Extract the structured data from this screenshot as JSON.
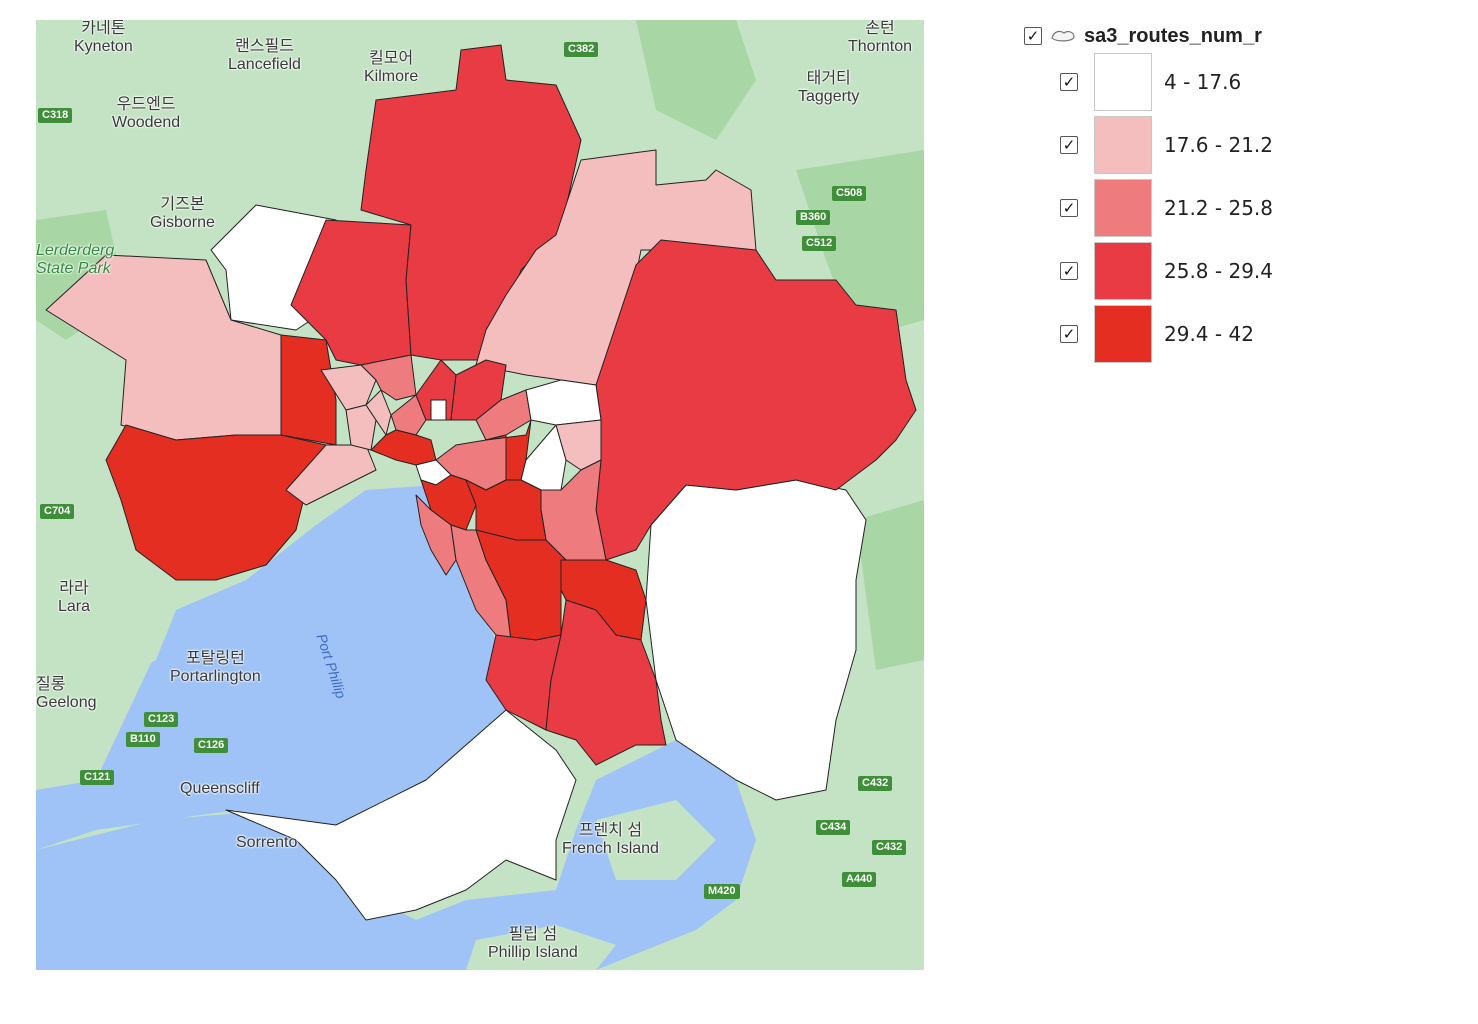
{
  "legend": {
    "layer_name": "sa3_routes_num_r",
    "layer_icon": "polygon-layer-icon",
    "classes": [
      {
        "label": "4 - 17.6",
        "color": "#ffffff"
      },
      {
        "label": "17.6 - 21.2",
        "color": "#f4bebe"
      },
      {
        "label": "21.2 - 25.8",
        "color": "#ee7b7e"
      },
      {
        "label": "25.8 - 29.4",
        "color": "#e83b43"
      },
      {
        "label": "29.4 - 42",
        "color": "#e52e22"
      }
    ]
  },
  "map": {
    "colors": {
      "land": "#c4e3c4",
      "forest": "#a9d6a5",
      "water": "#9fc3f7",
      "road": "#3f8f3a"
    },
    "places": [
      {
        "ko": "카네톤",
        "en": "Kyneton"
      },
      {
        "ko": "랜스필드",
        "en": "Lancefield"
      },
      {
        "ko": "킬모어",
        "en": "Kilmore"
      },
      {
        "ko": "손턴",
        "en": "Thornton"
      },
      {
        "ko": "태거티",
        "en": "Taggerty"
      },
      {
        "ko": "우드엔드",
        "en": "Woodend"
      },
      {
        "ko": "기즈본",
        "en": "Gisborne"
      },
      {
        "ko": "",
        "en": "Lerderderg State Park"
      },
      {
        "ko": "라라",
        "en": "Lara"
      },
      {
        "ko": "포탈링턴",
        "en": "Portarlington"
      },
      {
        "ko": "질롱",
        "en": "Geelong"
      },
      {
        "ko": "",
        "en": "Queenscliff"
      },
      {
        "ko": "프렌치 섬",
        "en": "French Island"
      },
      {
        "ko": "필립 섬",
        "en": "Phillip Island"
      },
      {
        "ko": "",
        "en": "Sorrento"
      }
    ],
    "water_label": "Port Phillip",
    "road_labels": [
      "C382",
      "C318",
      "C508",
      "B360",
      "C512",
      "C704",
      "C123",
      "B110",
      "C126",
      "C121",
      "C432",
      "C434",
      "M420",
      "A440",
      "C432"
    ]
  }
}
